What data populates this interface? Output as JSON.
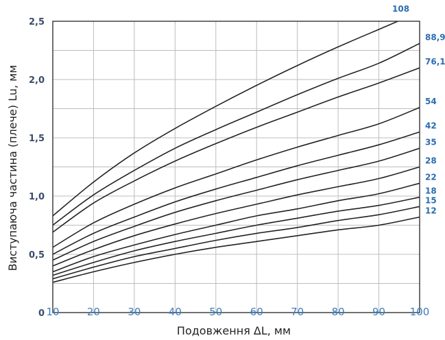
{
  "chart_data": {
    "type": "line",
    "title": "",
    "xlabel": "Подовження ΔL, мм",
    "ylabel": "Виступаюча частина (плече) Lu, мм",
    "xlim": [
      10,
      100
    ],
    "ylim": [
      0,
      2.5
    ],
    "x_ticks": [
      "10",
      "20",
      "30",
      "40",
      "50",
      "60",
      "70",
      "80",
      "90",
      "100"
    ],
    "y_ticks": [
      "0",
      "0,5",
      "1,0",
      "1,5",
      "2,0",
      "2,5"
    ],
    "y_tick_values": [
      0,
      0.5,
      1.0,
      1.5,
      2.0,
      2.5
    ],
    "grid": true,
    "x": [
      10,
      20,
      30,
      40,
      50,
      60,
      70,
      80,
      90,
      100
    ],
    "series": [
      {
        "name": "108",
        "values": [
          0.83,
          1.12,
          1.37,
          1.58,
          1.77,
          1.95,
          2.12,
          2.28,
          2.43,
          2.58
        ]
      },
      {
        "name": "88,9",
        "values": [
          0.75,
          1.01,
          1.22,
          1.41,
          1.57,
          1.72,
          1.87,
          2.01,
          2.14,
          2.31
        ]
      },
      {
        "name": "76,1",
        "values": [
          0.69,
          0.94,
          1.13,
          1.3,
          1.45,
          1.59,
          1.72,
          1.85,
          1.97,
          2.1
        ]
      },
      {
        "name": "54",
        "values": [
          0.56,
          0.77,
          0.93,
          1.07,
          1.19,
          1.31,
          1.42,
          1.52,
          1.62,
          1.76
        ]
      },
      {
        "name": "42",
        "values": [
          0.5,
          0.68,
          0.82,
          0.95,
          1.06,
          1.16,
          1.26,
          1.35,
          1.44,
          1.55
        ]
      },
      {
        "name": "35",
        "values": [
          0.45,
          0.61,
          0.74,
          0.86,
          0.96,
          1.05,
          1.14,
          1.22,
          1.3,
          1.41
        ]
      },
      {
        "name": "28",
        "values": [
          0.4,
          0.54,
          0.66,
          0.76,
          0.85,
          0.93,
          1.01,
          1.08,
          1.15,
          1.25
        ]
      },
      {
        "name": "22",
        "values": [
          0.35,
          0.48,
          0.58,
          0.67,
          0.75,
          0.83,
          0.89,
          0.96,
          1.02,
          1.11
        ]
      },
      {
        "name": "18",
        "values": [
          0.32,
          0.43,
          0.53,
          0.61,
          0.68,
          0.75,
          0.81,
          0.87,
          0.92,
          0.99
        ]
      },
      {
        "name": "15",
        "values": [
          0.29,
          0.39,
          0.48,
          0.55,
          0.62,
          0.68,
          0.73,
          0.79,
          0.84,
          0.91
        ]
      },
      {
        "name": "12",
        "values": [
          0.26,
          0.35,
          0.43,
          0.5,
          0.56,
          0.61,
          0.66,
          0.71,
          0.75,
          0.82
        ]
      }
    ]
  },
  "colors": {
    "curve": "#222222",
    "series_label": "#2b6cb0",
    "x_tick": "#3b7ec0",
    "y_tick": "#3a4d6b",
    "grid": "#bdbdbd"
  }
}
